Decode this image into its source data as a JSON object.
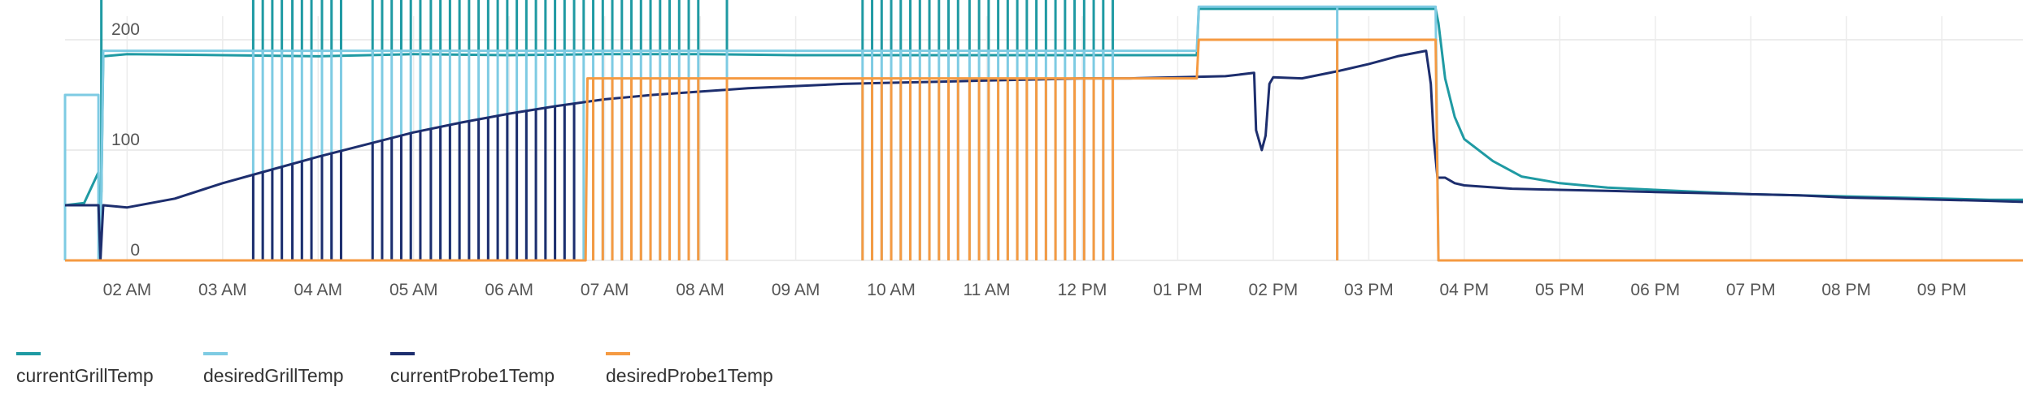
{
  "chart_data": {
    "type": "line",
    "x_tick_labels": [
      "02 AM",
      "03 AM",
      "04 AM",
      "05 AM",
      "06 AM",
      "07 AM",
      "08 AM",
      "09 AM",
      "10 AM",
      "11 AM",
      "12 PM",
      "01 PM",
      "02 PM",
      "03 PM",
      "04 PM",
      "05 PM",
      "06 PM",
      "07 PM",
      "08 PM",
      "09 PM"
    ],
    "y_tick_labels": [
      "0",
      "100",
      "200"
    ],
    "ylim": [
      0,
      230
    ],
    "xlim": [
      1.35,
      21.85
    ],
    "x_unit": "hour of day",
    "grid": true,
    "legend_position": "bottom-left",
    "series": [
      {
        "name": "currentGrillTemp",
        "color": "#1f9aa3",
        "points": [
          [
            1.35,
            50
          ],
          [
            1.55,
            52
          ],
          [
            1.7,
            80
          ],
          [
            1.72,
            0
          ],
          [
            1.75,
            185
          ],
          [
            2,
            187
          ],
          [
            3,
            186
          ],
          [
            4,
            185
          ],
          [
            5,
            187
          ],
          [
            6,
            186
          ],
          [
            7,
            187
          ],
          [
            8,
            187
          ],
          [
            9,
            186
          ],
          [
            10,
            186
          ],
          [
            11,
            186
          ],
          [
            12,
            186
          ],
          [
            13,
            186
          ],
          [
            13.2,
            186
          ],
          [
            13.22,
            228
          ],
          [
            14,
            228
          ],
          [
            15,
            228
          ],
          [
            15.7,
            228
          ],
          [
            15.73,
            215
          ],
          [
            15.8,
            165
          ],
          [
            15.9,
            130
          ],
          [
            16,
            110
          ],
          [
            16.3,
            90
          ],
          [
            16.6,
            76
          ],
          [
            17,
            70
          ],
          [
            17.5,
            66
          ],
          [
            18,
            64
          ],
          [
            18.5,
            62
          ],
          [
            19,
            60
          ],
          [
            19.5,
            59
          ],
          [
            20,
            58
          ],
          [
            20.5,
            57
          ],
          [
            21,
            56
          ],
          [
            21.5,
            55
          ],
          [
            21.85,
            55
          ]
        ],
        "spikes": {
          "x": [
            1.73,
            3.32,
            3.42,
            3.52,
            3.62,
            3.73,
            3.83,
            3.93,
            4.04,
            4.14,
            4.24,
            4.57,
            4.67,
            4.77,
            4.87,
            4.97,
            5.07,
            5.18,
            5.28,
            5.38,
            5.48,
            5.58,
            5.68,
            5.78,
            5.88,
            5.98,
            6.08,
            6.18,
            6.28,
            6.38,
            6.48,
            6.58,
            6.68,
            6.78,
            6.88,
            6.98,
            7.08,
            7.18,
            7.28,
            7.38,
            7.48,
            7.58,
            7.68,
            7.78,
            7.88,
            7.98,
            8.28,
            9.7,
            9.8,
            9.9,
            10,
            10.1,
            10.2,
            10.3,
            10.4,
            10.5,
            10.6,
            10.7,
            10.82,
            10.92,
            11.02,
            11.12,
            11.22,
            11.32,
            11.42,
            11.52,
            11.62,
            11.72,
            11.82,
            11.92,
            12.02,
            12.12,
            12.22,
            12.32
          ],
          "to": 240
        }
      },
      {
        "name": "desiredGrillTemp",
        "color": "#7ecbe3",
        "points": [
          [
            1.35,
            0
          ],
          [
            1.35,
            150
          ],
          [
            1.7,
            150
          ],
          [
            1.7,
            0
          ],
          [
            1.72,
            0
          ],
          [
            1.75,
            190
          ],
          [
            13.2,
            190
          ],
          [
            13.22,
            230
          ],
          [
            15.7,
            230
          ],
          [
            15.73,
            0
          ],
          [
            21.85,
            0
          ]
        ],
        "spikes": {
          "x": [
            3.32,
            3.42,
            3.52,
            3.62,
            3.73,
            3.83,
            3.93,
            4.04,
            4.14,
            4.24,
            4.57,
            4.67,
            4.77,
            4.87,
            4.97,
            5.07,
            5.18,
            5.28,
            5.38,
            5.48,
            5.58,
            5.68,
            5.78,
            5.88,
            5.98,
            6.08,
            6.18,
            6.28,
            6.38,
            6.48,
            6.58,
            6.68,
            6.78,
            6.88,
            6.98,
            7.08,
            7.18,
            7.28,
            7.38,
            7.48,
            7.58,
            7.68,
            7.78,
            7.88,
            7.98,
            8.28,
            9.7,
            9.8,
            9.9,
            10,
            10.1,
            10.2,
            10.3,
            10.4,
            10.5,
            10.6,
            10.7,
            10.82,
            10.92,
            11.02,
            11.12,
            11.22,
            11.32,
            11.42,
            11.52,
            11.62,
            11.72,
            11.82,
            11.92,
            12.02,
            12.12,
            12.22,
            12.32,
            14.67
          ],
          "to": 0
        }
      },
      {
        "name": "currentProbe1Temp",
        "color": "#1d2e6e",
        "points": [
          [
            1.35,
            50
          ],
          [
            1.7,
            50
          ],
          [
            1.72,
            0
          ],
          [
            1.75,
            50
          ],
          [
            2,
            48
          ],
          [
            2.5,
            56
          ],
          [
            3,
            70
          ],
          [
            3.5,
            82
          ],
          [
            4,
            94
          ],
          [
            4.5,
            105
          ],
          [
            5,
            116
          ],
          [
            5.5,
            125
          ],
          [
            6,
            133
          ],
          [
            6.5,
            140
          ],
          [
            7,
            146
          ],
          [
            7.5,
            150
          ],
          [
            8,
            153
          ],
          [
            8.5,
            156
          ],
          [
            9,
            158
          ],
          [
            9.5,
            160
          ],
          [
            10,
            161
          ],
          [
            10.5,
            162
          ],
          [
            11,
            163
          ],
          [
            11.5,
            164
          ],
          [
            12,
            165
          ],
          [
            12.5,
            165
          ],
          [
            13,
            166
          ],
          [
            13.5,
            167
          ],
          [
            13.8,
            170
          ],
          [
            13.82,
            118
          ],
          [
            13.88,
            100
          ],
          [
            13.92,
            113
          ],
          [
            13.96,
            160
          ],
          [
            14,
            166
          ],
          [
            14.3,
            165
          ],
          [
            14.7,
            172
          ],
          [
            15,
            178
          ],
          [
            15.3,
            185
          ],
          [
            15.6,
            190
          ],
          [
            15.65,
            160
          ],
          [
            15.68,
            110
          ],
          [
            15.72,
            75
          ],
          [
            15.8,
            75
          ],
          [
            15.9,
            70
          ],
          [
            16,
            68
          ],
          [
            16.5,
            65
          ],
          [
            17,
            64
          ],
          [
            17.5,
            63
          ],
          [
            18,
            62
          ],
          [
            18.5,
            61
          ],
          [
            19,
            60
          ],
          [
            19.5,
            59
          ],
          [
            20,
            57
          ],
          [
            20.5,
            56
          ],
          [
            21,
            55
          ],
          [
            21.5,
            54
          ],
          [
            21.85,
            53
          ]
        ],
        "spikes": {
          "x": [
            3.32,
            3.42,
            3.52,
            3.62,
            3.73,
            3.83,
            3.93,
            4.04,
            4.14,
            4.24,
            4.57,
            4.67,
            4.77,
            4.87,
            4.97,
            5.07,
            5.18,
            5.28,
            5.38,
            5.48,
            5.58,
            5.68,
            5.78,
            5.88,
            5.98,
            6.08,
            6.18,
            6.28,
            6.38,
            6.48,
            6.58,
            6.68
          ],
          "to": 0
        }
      },
      {
        "name": "desiredProbe1Temp",
        "color": "#f59a42",
        "points": [
          [
            1.35,
            0
          ],
          [
            6.8,
            0
          ],
          [
            6.82,
            165
          ],
          [
            13.2,
            165
          ],
          [
            13.22,
            200
          ],
          [
            15.7,
            200
          ],
          [
            15.73,
            0
          ],
          [
            21.85,
            0
          ]
        ],
        "spikes": {
          "x": [
            6.88,
            6.98,
            7.08,
            7.18,
            7.28,
            7.38,
            7.48,
            7.58,
            7.68,
            7.78,
            7.88,
            7.98,
            8.28,
            9.7,
            9.8,
            9.9,
            10,
            10.1,
            10.2,
            10.3,
            10.4,
            10.5,
            10.6,
            10.7,
            10.82,
            10.92,
            11.02,
            11.12,
            11.22,
            11.32,
            11.42,
            11.52,
            11.62,
            11.72,
            11.82,
            11.92,
            12.02,
            12.12,
            12.22,
            12.32,
            14.67
          ],
          "to": 0
        }
      }
    ]
  }
}
